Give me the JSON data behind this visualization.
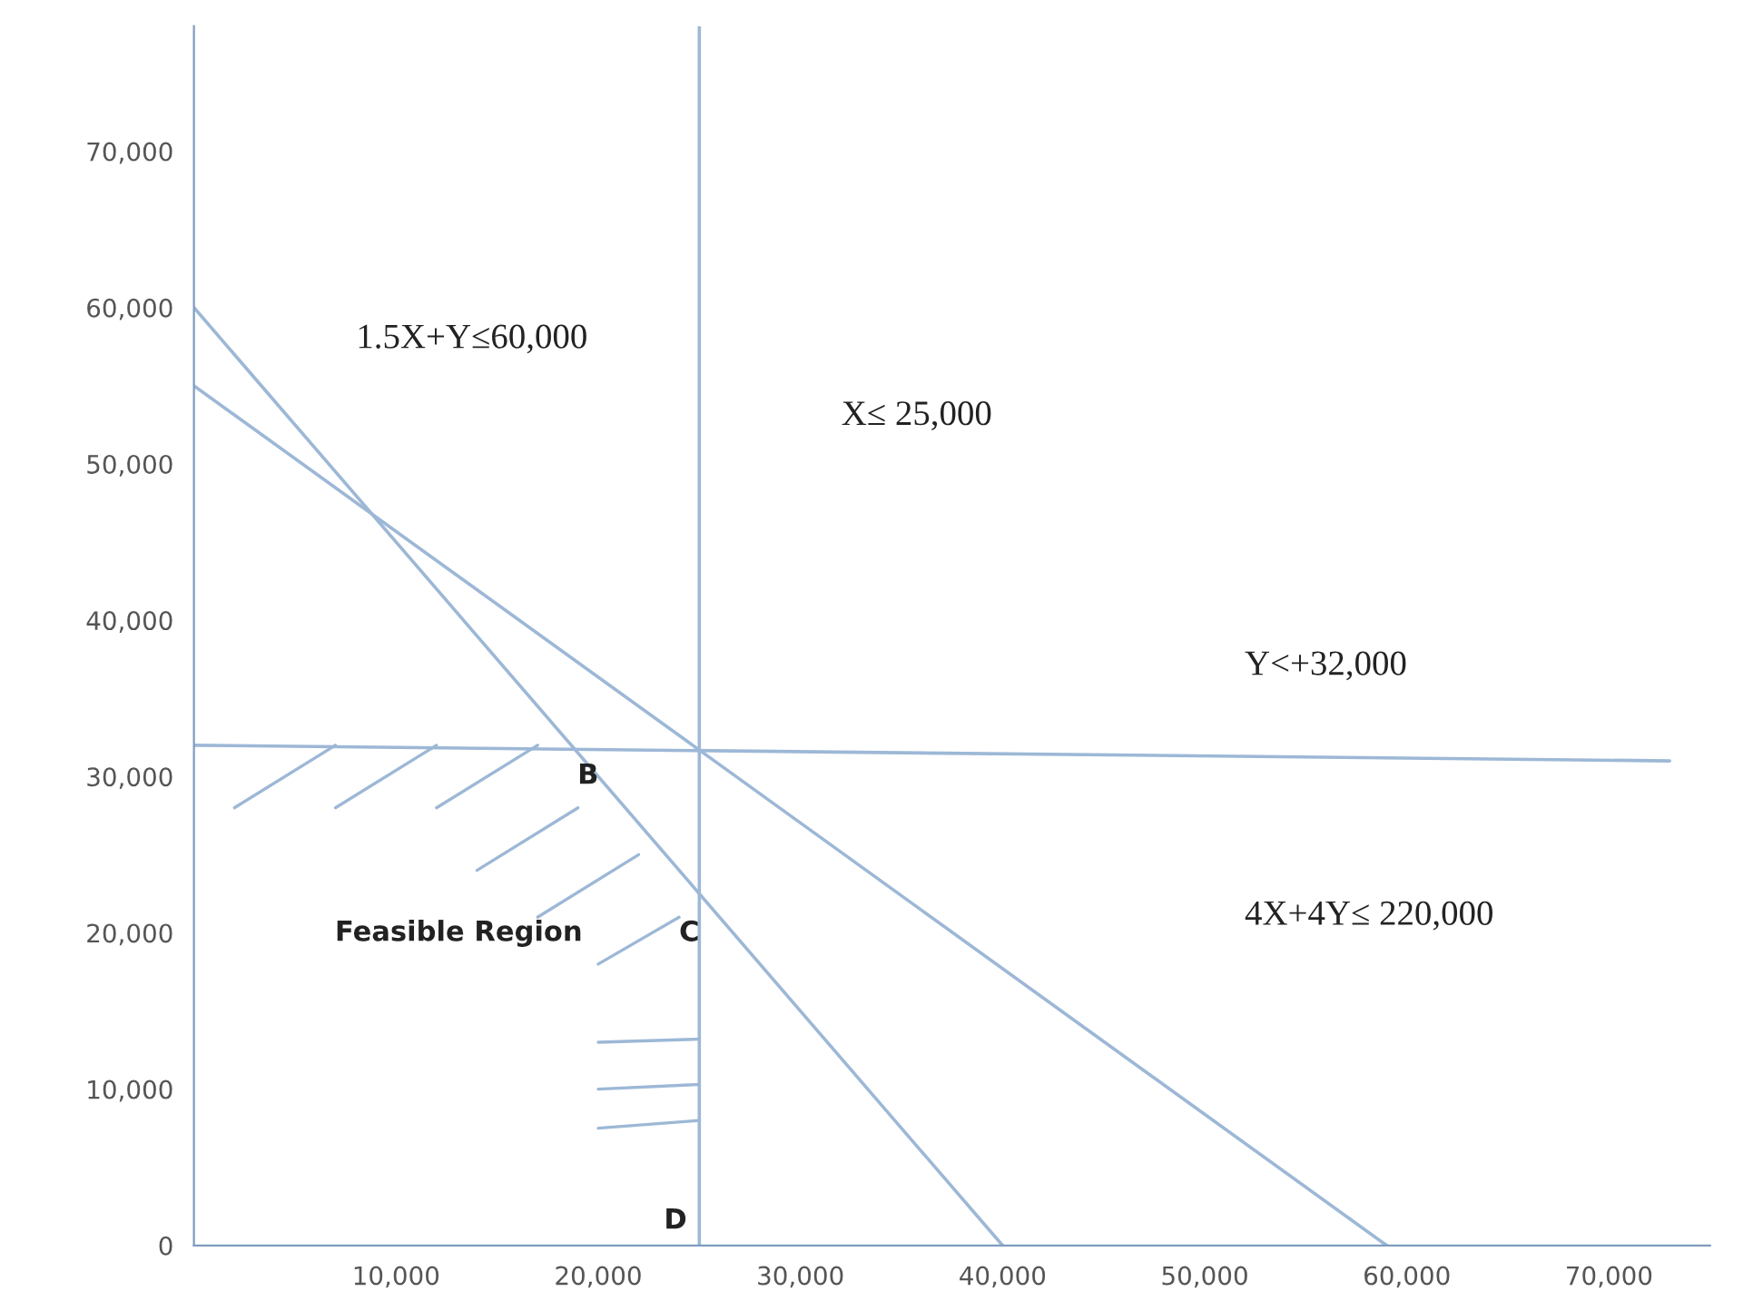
{
  "chart_data": {
    "type": "line",
    "xlim": [
      0,
      75000
    ],
    "ylim": [
      0,
      78000
    ],
    "xticks": [
      {
        "value": 10000,
        "label": "10,000"
      },
      {
        "value": 20000,
        "label": "20,000"
      },
      {
        "value": 30000,
        "label": "30,000"
      },
      {
        "value": 40000,
        "label": "40,000"
      },
      {
        "value": 50000,
        "label": "50,000"
      },
      {
        "value": 60000,
        "label": "60,000"
      },
      {
        "value": 70000,
        "label": "70,000"
      }
    ],
    "yticks": [
      {
        "value": 0,
        "label": "0"
      },
      {
        "value": 10000,
        "label": "10,000"
      },
      {
        "value": 20000,
        "label": "20,000"
      },
      {
        "value": 30000,
        "label": "30,000"
      },
      {
        "value": 40000,
        "label": "40,000"
      },
      {
        "value": 50000,
        "label": "50,000"
      },
      {
        "value": 60000,
        "label": "60,000"
      },
      {
        "value": 70000,
        "label": "70,000"
      }
    ],
    "series": [
      {
        "color": "#9db8d6",
        "x": [
          0,
          40000
        ],
        "values": [
          60000,
          0
        ]
      },
      {
        "color": "#9db8d6",
        "x": [
          0,
          59000
        ],
        "values": [
          55000,
          0
        ]
      },
      {
        "color": "#9db8d6",
        "x": [
          25000,
          25000
        ],
        "values": [
          0,
          78000
        ]
      },
      {
        "color": "#9db8d6",
        "x": [
          0,
          73000
        ],
        "values": [
          32000,
          31000
        ]
      }
    ],
    "annotations": [
      "1.5X+Y≤60,000",
      "X≤ 25,000",
      "Y<+32,000",
      "4X+4Y≤ 220,000",
      "Feasible Region",
      "B",
      "C",
      "D"
    ],
    "grid": false,
    "marker": "none",
    "line_style": "solid"
  }
}
